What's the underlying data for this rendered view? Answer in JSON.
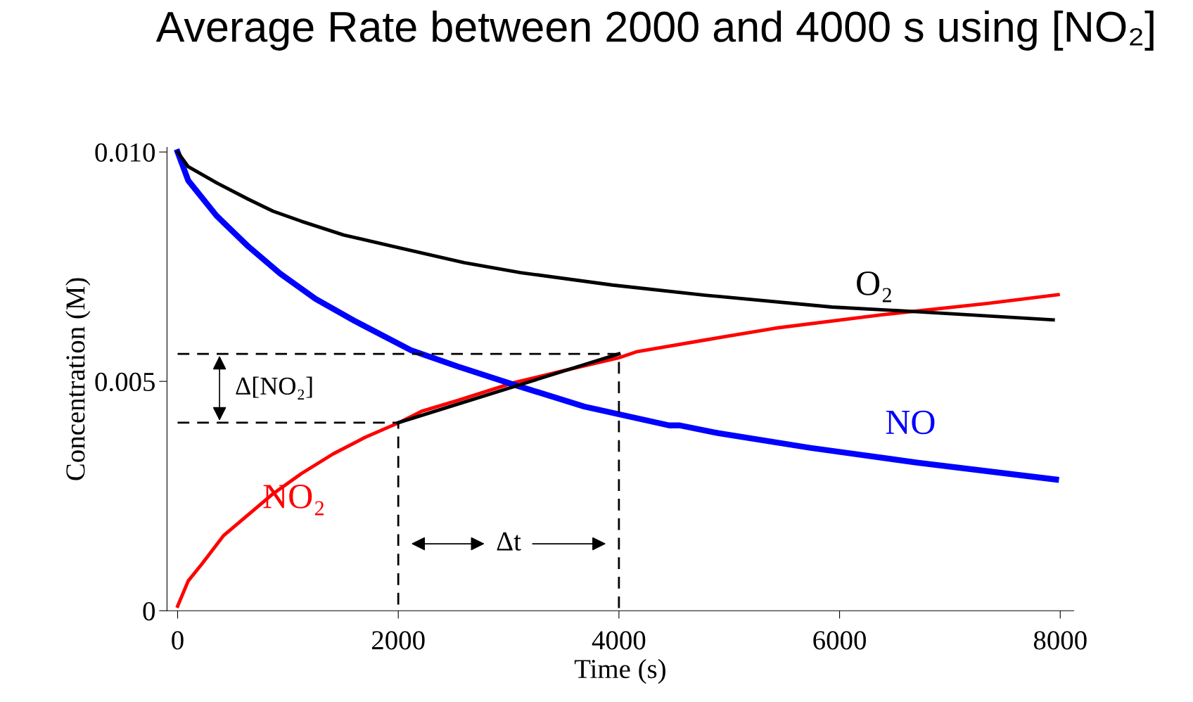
{
  "chart_data": {
    "type": "line",
    "title": "Average Rate between 2000 and 4000 s using [NO₂]",
    "xlabel": "Time (s)",
    "ylabel": "Concentration (M)",
    "xlim": [
      -96,
      8122
    ],
    "ylim": [
      0,
      0.0101
    ],
    "xticks": [
      0,
      2000,
      4000,
      6000,
      8000
    ],
    "yticks": [
      {
        "value": 0,
        "label": "0"
      },
      {
        "value": 0.005,
        "label": "0.005"
      },
      {
        "value": 0.01,
        "label": "0.010"
      }
    ],
    "grid": false,
    "legend": false,
    "marker": "none",
    "series": [
      {
        "name": "NO₂",
        "color": "#ff0000",
        "x": [
          0,
          96,
          224,
          417,
          609,
          865,
          1122,
          1410,
          1699,
          2006,
          2212,
          2532,
          3045,
          3494,
          4006,
          4167,
          4776,
          5417,
          6378,
          7340,
          7981
        ],
        "values": [
          0.0001,
          0.00065,
          0.00103,
          0.00164,
          0.00203,
          0.00255,
          0.00299,
          0.00342,
          0.00378,
          0.0041,
          0.00435,
          0.00458,
          0.00497,
          0.00523,
          0.00552,
          0.00565,
          0.0059,
          0.00616,
          0.00645,
          0.0067,
          0.00689
        ]
      },
      {
        "name": "NO",
        "color": "#0000ff",
        "x": [
          0,
          96,
          353,
          641,
          929,
          1250,
          1603,
          2115,
          2532,
          3045,
          3686,
          4455,
          4551,
          4904,
          5737,
          6699,
          7962
        ],
        "values": [
          0.01,
          0.00938,
          0.00861,
          0.00794,
          0.00735,
          0.0068,
          0.00632,
          0.00568,
          0.00533,
          0.00493,
          0.00445,
          0.00404,
          0.00404,
          0.00387,
          0.00355,
          0.00323,
          0.00286
        ]
      },
      {
        "name": "O₂",
        "color": "#000000",
        "x": [
          0,
          96,
          353,
          641,
          865,
          1122,
          1506,
          1955,
          2596,
          3109,
          3942,
          4776,
          5930,
          6699,
          7936
        ],
        "values": [
          0.01,
          0.00968,
          0.00933,
          0.00897,
          0.00871,
          0.00849,
          0.00819,
          0.00794,
          0.00759,
          0.00737,
          0.0071,
          0.00688,
          0.00662,
          0.00652,
          0.00634
        ]
      },
      {
        "color": "#000000",
        "x": [
          2000,
          4000
        ],
        "values": [
          0.0041,
          0.0056
        ]
      },
      {
        "color": "#000000",
        "line_style": "dashed",
        "x": [
          0,
          4000,
          4000
        ],
        "values": [
          0.0056,
          0.0056,
          0
        ]
      },
      {
        "color": "#000000",
        "line_style": "dashed",
        "x": [
          0,
          2000,
          2000
        ],
        "values": [
          0.0041,
          0.0041,
          0
        ]
      }
    ],
    "annotations": [
      "Δ[NO₂]",
      "Δt"
    ]
  }
}
